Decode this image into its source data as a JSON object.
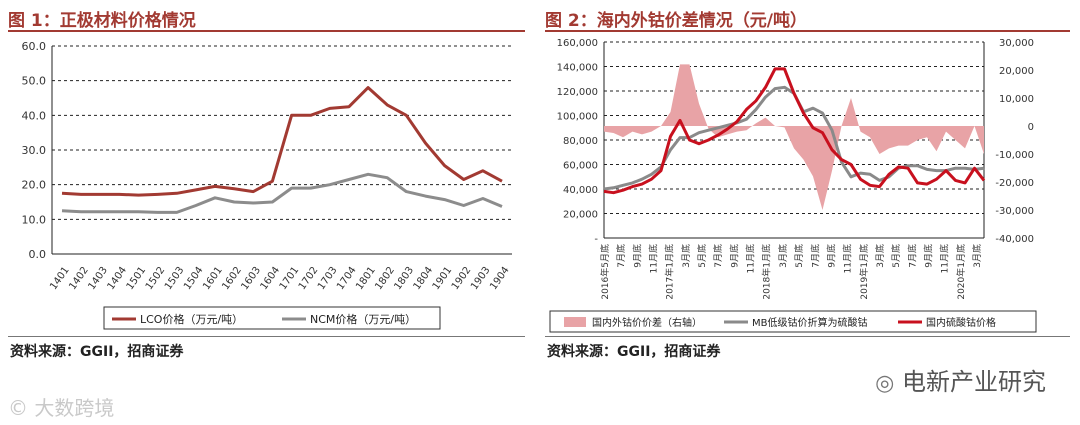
{
  "left": {
    "title": "图 1：正极材料价格情况",
    "source": "资料来源：GGII，招商证券"
  },
  "right": {
    "title": "图 2：海内外钴价差情况（元/吨）",
    "source": "资料来源：GGII，招商证券"
  },
  "watermarks": {
    "right": "电新产业研究",
    "left": "大数跨境"
  },
  "colors": {
    "lco": "#a23a32",
    "ncm": "#8c8c8c",
    "spread": "#e8a3a6",
    "domestic": "#c8101e",
    "mb": "#8a8a8a",
    "title": "#a23a32"
  },
  "chart_data": [
    {
      "type": "line",
      "title": "",
      "categories": [
        "1401",
        "1402",
        "1403",
        "1404",
        "1501",
        "1502",
        "1503",
        "1504",
        "1601",
        "1602",
        "1603",
        "1604",
        "1701",
        "1702",
        "1703",
        "1704",
        "1801",
        "1802",
        "1803",
        "1804",
        "1901",
        "1902",
        "1903",
        "1904"
      ],
      "series": [
        {
          "name": "LCO价格（万元/吨）",
          "values": [
            17.5,
            17.2,
            17.2,
            17.2,
            17.0,
            17.2,
            17.5,
            18.5,
            19.5,
            18.8,
            18.0,
            21.0,
            40.0,
            40.0,
            42.0,
            42.5,
            48.0,
            43.0,
            40.0,
            32.0,
            25.5,
            21.5,
            24.0,
            21.0
          ]
        },
        {
          "name": "NCM价格（万元/吨）",
          "values": [
            12.5,
            12.2,
            12.2,
            12.2,
            12.2,
            12.0,
            12.0,
            14.0,
            16.2,
            15.0,
            14.7,
            15.0,
            19.0,
            19.0,
            20.0,
            21.5,
            23.0,
            22.0,
            18.0,
            16.7,
            15.7,
            14.0,
            16.0,
            13.7
          ]
        }
      ],
      "yticks": [
        "0.0",
        "10.0",
        "20.0",
        "30.0",
        "40.0",
        "50.0",
        "60.0"
      ],
      "ylim": [
        0,
        60
      ],
      "grid": true,
      "legend": "bottom"
    },
    {
      "type": "line",
      "title": "",
      "x_labels": [
        "2016年5月底",
        "7月底",
        "9月底",
        "11月底",
        "2017年1月底",
        "3月底",
        "5月底",
        "7月底",
        "9月底",
        "11月底",
        "2018年1月底",
        "3月底",
        "5月底",
        "7月底",
        "9月底",
        "11月底",
        "2019年1月底",
        "3月底",
        "5月底",
        "7月底",
        "9月底",
        "11月底",
        "2020年1月底",
        "3月底"
      ],
      "yticks_left": [
        "-",
        "20,000",
        "40,000",
        "60,000",
        "80,000",
        "100,000",
        "120,000",
        "140,000",
        "160,000"
      ],
      "yticks_right": [
        "-40,000",
        "-30,000",
        "-20,000",
        "-10,000",
        "0",
        "10,000",
        "20,000",
        "30,000"
      ],
      "ylim_left": [
        0,
        160000
      ],
      "ylim_right": [
        -40000,
        30000
      ],
      "series": [
        {
          "name": "国内外钴价价差（右轴）",
          "kind": "area",
          "axis": "right",
          "values": [
            -2000,
            -2500,
            -4000,
            -2000,
            -3000,
            -2000,
            0,
            5000,
            22000,
            22000,
            8000,
            -1000,
            -4000,
            -3000,
            -2000,
            -1500,
            1000,
            3000,
            0,
            -500,
            -8000,
            -12000,
            -18000,
            -30000,
            -16000,
            0,
            10000,
            -2000,
            -4000,
            -10000,
            -8000,
            -7000,
            -7000,
            -5000,
            -4000,
            -9000,
            -2000,
            -5000,
            -8000,
            0,
            -10000
          ]
        },
        {
          "name": "MB低级钴价折算为硫酸钴",
          "kind": "line",
          "axis": "left",
          "values": [
            40000,
            41000,
            43000,
            45000,
            48000,
            52000,
            58000,
            72000,
            82000,
            82000,
            86000,
            88000,
            90000,
            92000,
            94000,
            97000,
            105000,
            115000,
            122000,
            123000,
            118000,
            103000,
            106000,
            102000,
            88000,
            62000,
            50000,
            53000,
            52000,
            47000,
            50000,
            57000,
            59000,
            59000,
            56000,
            55000,
            55000,
            57000,
            57000,
            56000,
            57000
          ]
        },
        {
          "name": "国内硫酸钴价格",
          "kind": "line",
          "axis": "left",
          "values": [
            38000,
            37000,
            39000,
            42000,
            44000,
            48000,
            55000,
            83000,
            96000,
            80000,
            77000,
            80000,
            84000,
            89000,
            95000,
            105000,
            112000,
            123000,
            138000,
            138000,
            118000,
            102000,
            90000,
            86000,
            72000,
            64000,
            60000,
            48000,
            43000,
            42000,
            52000,
            58000,
            57000,
            45000,
            44000,
            48000,
            55000,
            47000,
            45000,
            57000,
            47000
          ]
        }
      ],
      "grid": true,
      "legend": "bottom"
    }
  ]
}
